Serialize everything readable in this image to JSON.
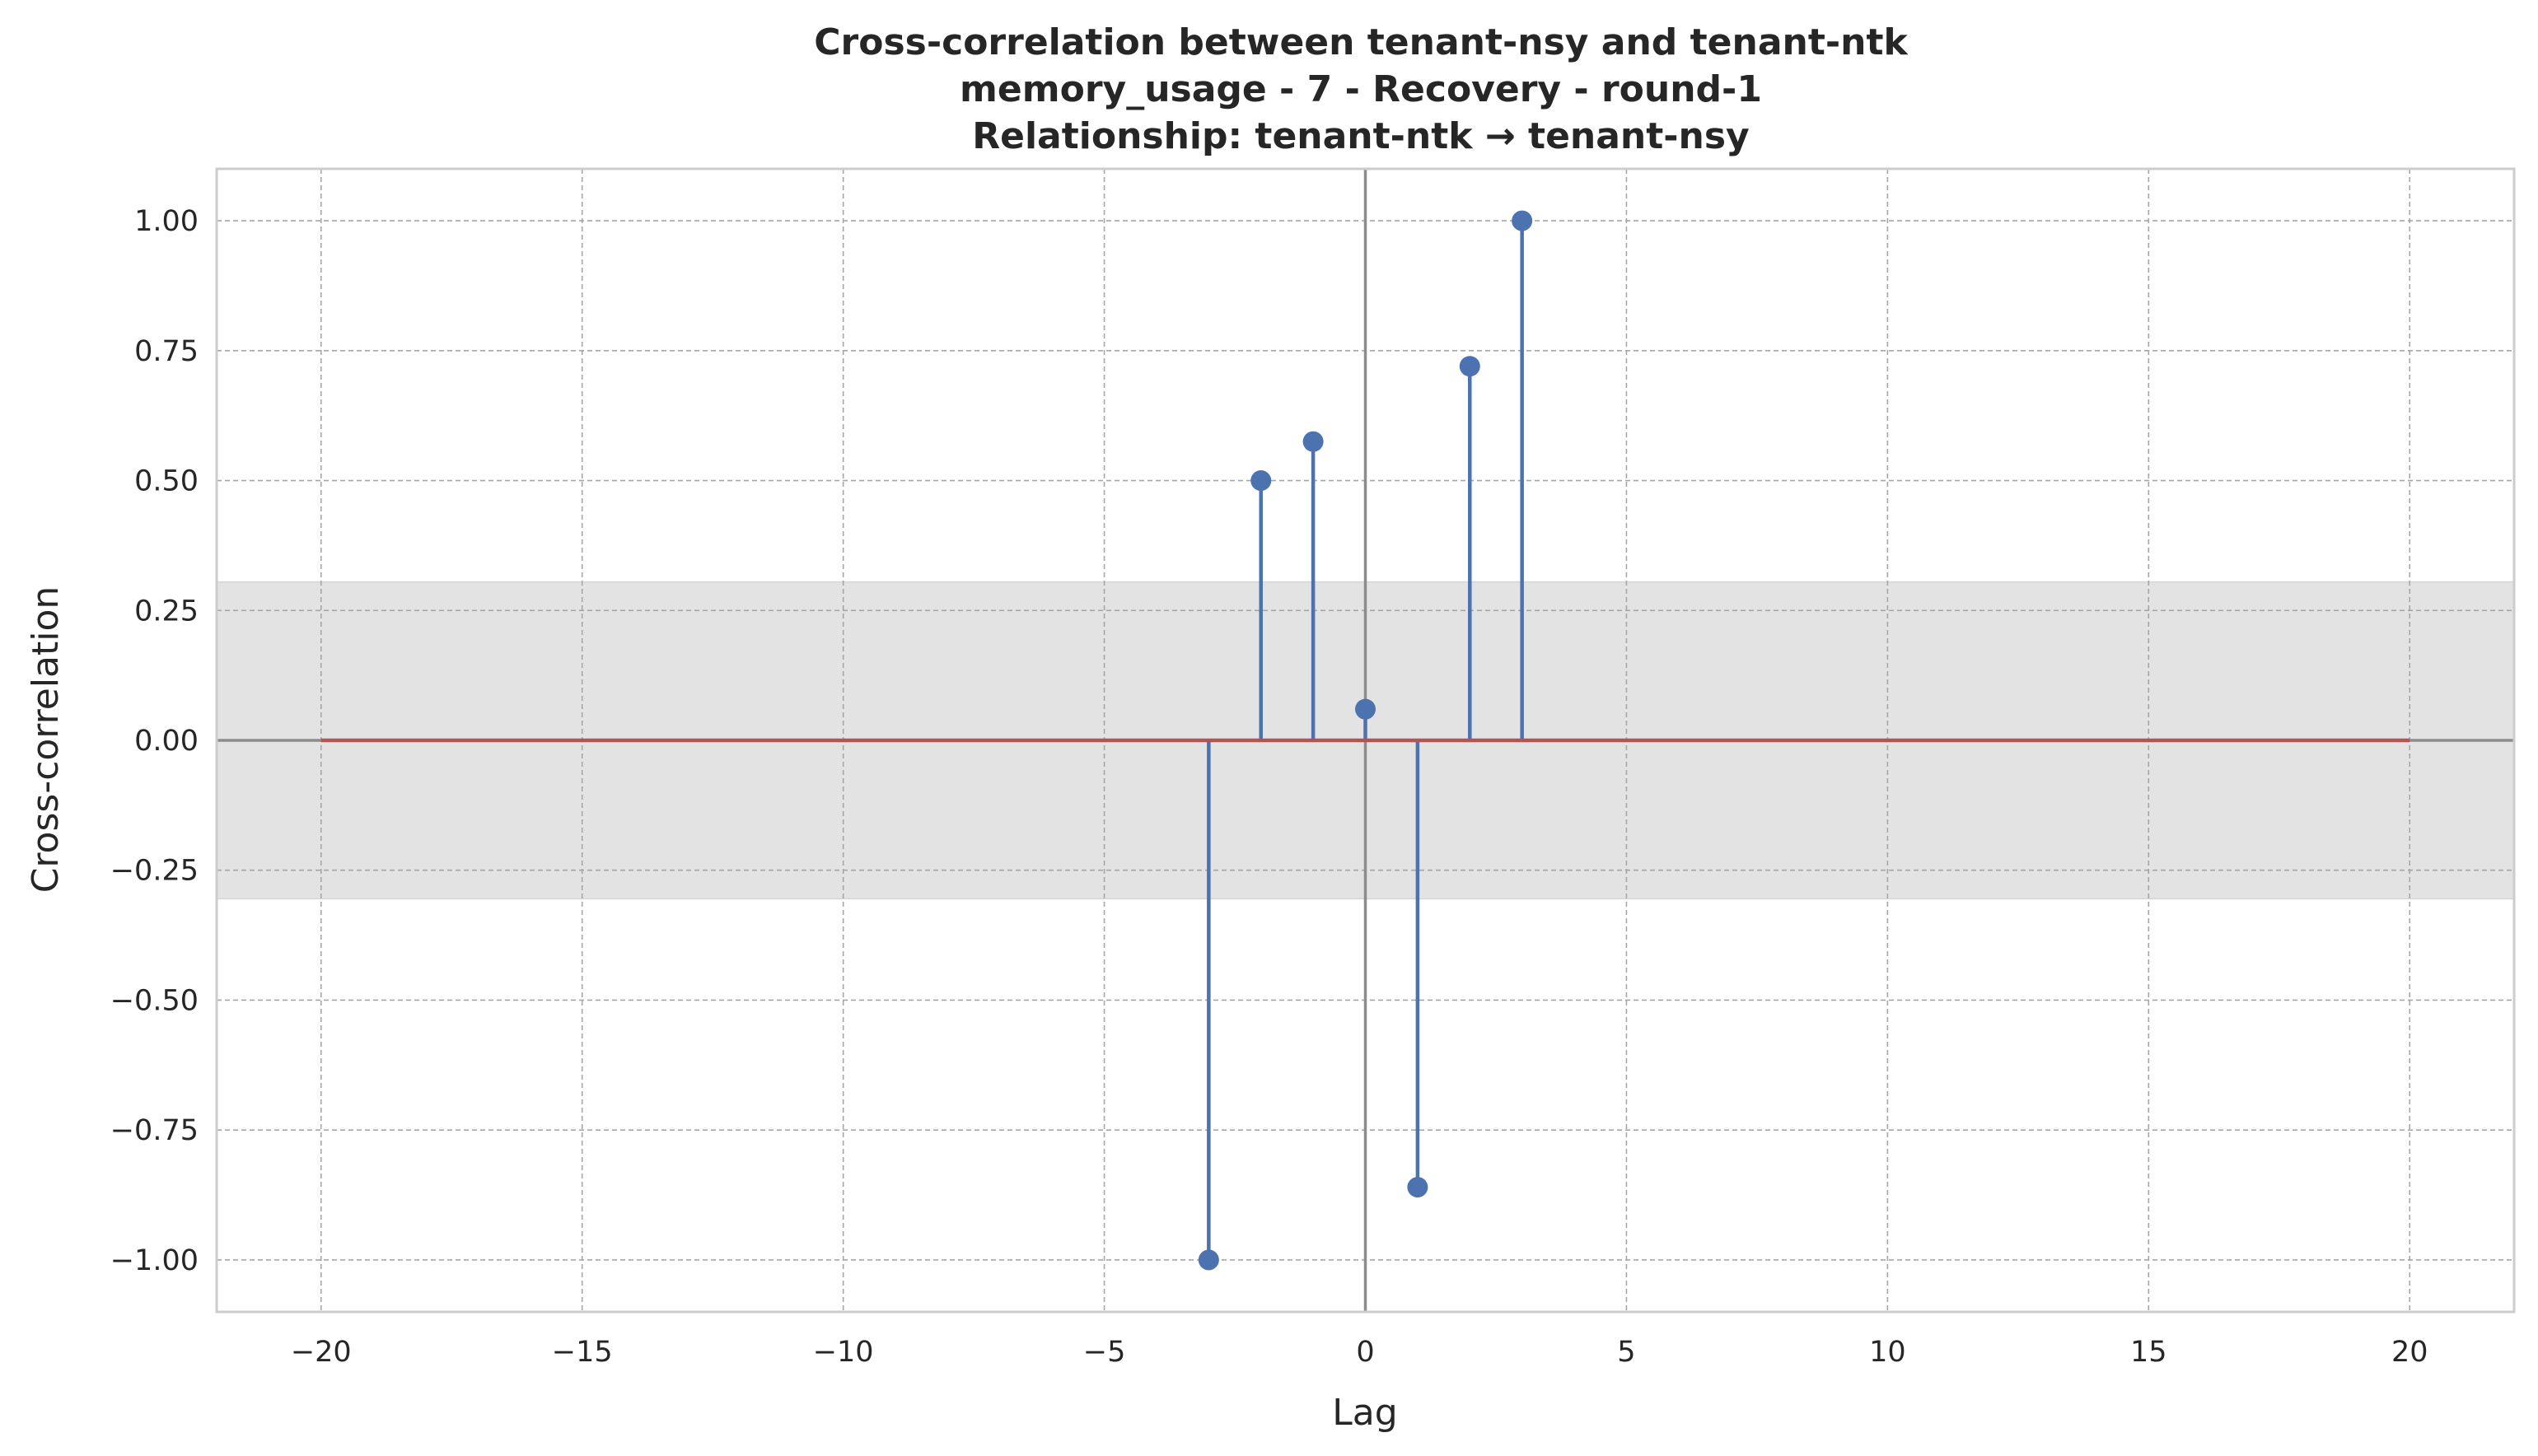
{
  "chart_data": {
    "type": "stem",
    "title_lines": [
      "Cross-correlation between tenant-nsy and tenant-ntk",
      "memory_usage - 7 - Recovery - round-1",
      "Relationship: tenant-ntk → tenant-nsy"
    ],
    "xlabel": "Lag",
    "ylabel": "Cross-correlation",
    "xlim": [
      -22,
      22
    ],
    "ylim": [
      -1.1,
      1.1
    ],
    "xticks": [
      -20,
      -15,
      -10,
      -5,
      0,
      5,
      10,
      15,
      20
    ],
    "xtick_labels": [
      "−20",
      "−15",
      "−10",
      "−5",
      "0",
      "5",
      "10",
      "15",
      "20"
    ],
    "yticks": [
      1.0,
      0.75,
      0.5,
      0.25,
      0.0,
      -0.25,
      -0.5,
      -0.75,
      -1.0
    ],
    "ytick_labels": [
      "1.00",
      "0.75",
      "0.50",
      "0.25",
      "0.00",
      "−0.25",
      "−0.50",
      "−0.75",
      "−1.00"
    ],
    "grid": true,
    "confidence_band": [
      -0.305,
      0.305
    ],
    "baseline_range": [
      -20,
      20
    ],
    "lags": [
      -20,
      -19,
      -18,
      -17,
      -16,
      -15,
      -14,
      -13,
      -12,
      -11,
      -10,
      -9,
      -8,
      -7,
      -6,
      -5,
      -4,
      -3,
      -2,
      -1,
      0,
      1,
      2,
      3,
      4,
      5,
      6,
      7,
      8,
      9,
      10,
      11,
      12,
      13,
      14,
      15,
      16,
      17,
      18,
      19,
      20
    ],
    "values": [
      0,
      0,
      0,
      0,
      0,
      0,
      0,
      0,
      0,
      0,
      0,
      0,
      0,
      0,
      0,
      0,
      0,
      -1.0,
      0.5,
      0.575,
      0.06,
      -0.86,
      0.72,
      1.0,
      0,
      0,
      0,
      0,
      0,
      0,
      0,
      0,
      0,
      0,
      0,
      0,
      0,
      0,
      0,
      0,
      0
    ],
    "colors": {
      "stem": "#4c72b0",
      "baseline": "#b05555",
      "band": "#e3e3e3",
      "zero_line": "#8c8c8c",
      "grid": "#a6a6a6",
      "spine": "#cccccc"
    }
  }
}
